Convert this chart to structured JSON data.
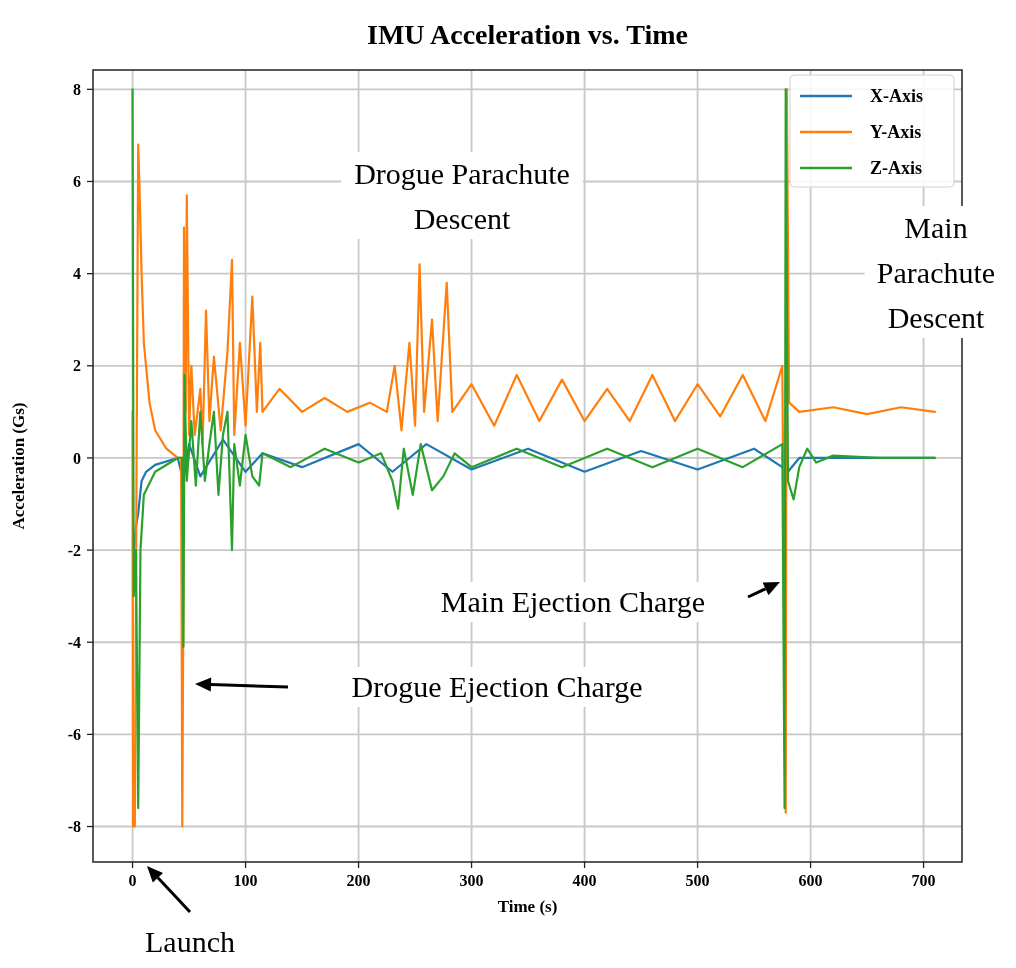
{
  "chart_data": {
    "type": "line",
    "title": "IMU Acceleration vs. Time",
    "xlabel": "Time (s)",
    "ylabel": "Acceleration (Gs)",
    "xlim": [
      -35,
      734
    ],
    "ylim": [
      -8.77,
      8.42
    ],
    "xticks": [
      0,
      100,
      200,
      300,
      400,
      500,
      600,
      700
    ],
    "yticks": [
      -8,
      -6,
      -4,
      -2,
      0,
      2,
      4,
      6,
      8
    ],
    "grid": true,
    "legend": "top right",
    "line_style": "solid",
    "marker": "none",
    "annotations": [
      "Drogue Parachute\nDescent",
      "Main\nParachute\nDescent",
      "Launch",
      "Drogue Ejection Charge",
      "Main Ejection Charge"
    ],
    "series": [
      {
        "name": "X-Axis",
        "color": "#1f77b4",
        "x": [
          1,
          3,
          5,
          8,
          12,
          20,
          40,
          45,
          50,
          60,
          80,
          100,
          115,
          150,
          200,
          230,
          260,
          300,
          350,
          400,
          450,
          500,
          550,
          575,
          580,
          590,
          620,
          710
        ],
        "values": [
          -2,
          -1.5,
          -1.2,
          -0.5,
          -0.3,
          -0.15,
          0,
          -0.5,
          0.3,
          -0.4,
          0.4,
          -0.3,
          0.1,
          -0.2,
          0.3,
          -0.3,
          0.3,
          -0.25,
          0.2,
          -0.3,
          0.15,
          -0.25,
          0.2,
          -0.2,
          -0.3,
          0,
          0,
          0
        ]
      },
      {
        "name": "Y-Axis",
        "color": "#ff7f0e",
        "x": [
          0,
          0.5,
          2,
          3,
          4,
          5,
          6,
          8,
          10,
          15,
          20,
          30,
          40,
          43,
          44,
          45,
          45.5,
          47,
          48,
          50,
          52,
          55,
          60,
          62,
          65,
          68,
          72,
          78,
          84,
          88,
          90,
          95,
          100,
          106,
          110,
          113,
          115,
          130,
          150,
          170,
          190,
          210,
          225,
          232,
          238,
          245,
          250,
          254,
          258,
          265,
          270,
          278,
          283,
          300,
          320,
          340,
          360,
          380,
          400,
          420,
          440,
          460,
          480,
          500,
          520,
          540,
          560,
          575,
          578,
          579,
          581,
          590,
          620,
          650,
          680,
          710
        ],
        "values": [
          1,
          -8,
          -8,
          -3,
          2,
          6.8,
          6,
          4,
          2.5,
          1.2,
          0.6,
          0.2,
          0,
          0,
          -8,
          -2.9,
          5,
          1,
          5.7,
          0.5,
          2,
          0.5,
          1.5,
          0.3,
          3.2,
          0.8,
          2.2,
          0.6,
          2.3,
          4.3,
          0.5,
          2.5,
          0.7,
          3.5,
          1,
          2.5,
          1,
          1.5,
          1,
          1.3,
          1,
          1.2,
          1,
          2,
          0.6,
          2.5,
          0.7,
          4.2,
          1,
          3,
          0.8,
          3.8,
          1,
          1.6,
          0.7,
          1.8,
          0.8,
          1.7,
          0.8,
          1.5,
          0.8,
          1.8,
          0.8,
          1.6,
          0.9,
          1.8,
          0.8,
          2,
          -7.7,
          8,
          1.2,
          1,
          1.1,
          0.95,
          1.1,
          1
        ]
      },
      {
        "name": "Z-Axis",
        "color": "#2ca02c",
        "x": [
          0,
          1,
          3,
          5,
          7,
          10,
          20,
          40,
          44,
          45,
          46,
          48,
          52,
          56,
          60,
          64,
          68,
          72,
          76,
          80,
          84,
          86,
          88,
          90,
          95,
          100,
          106,
          112,
          115,
          140,
          170,
          200,
          220,
          230,
          235,
          240,
          248,
          255,
          265,
          275,
          285,
          300,
          340,
          380,
          420,
          460,
          500,
          540,
          575,
          577,
          578,
          580,
          585,
          590,
          597,
          605,
          620,
          660,
          710
        ],
        "values": [
          8,
          -3,
          -2,
          -7.6,
          -2,
          -0.8,
          -0.3,
          0,
          0,
          -4.1,
          1.8,
          -0.5,
          0.8,
          -0.6,
          1,
          -0.5,
          0.3,
          1,
          -0.8,
          0.5,
          1,
          -0.5,
          -2,
          0.3,
          -0.6,
          0.5,
          -0.4,
          -0.6,
          0.1,
          -0.2,
          0.2,
          -0.1,
          0.1,
          -0.5,
          -1.1,
          0.2,
          -0.8,
          0.3,
          -0.7,
          -0.4,
          0.1,
          -0.2,
          0.2,
          -0.2,
          0.2,
          -0.2,
          0.2,
          -0.2,
          0.3,
          -7.6,
          8,
          -0.5,
          -0.9,
          -0.2,
          0.2,
          -0.1,
          0.05,
          0,
          0
        ]
      }
    ]
  }
}
